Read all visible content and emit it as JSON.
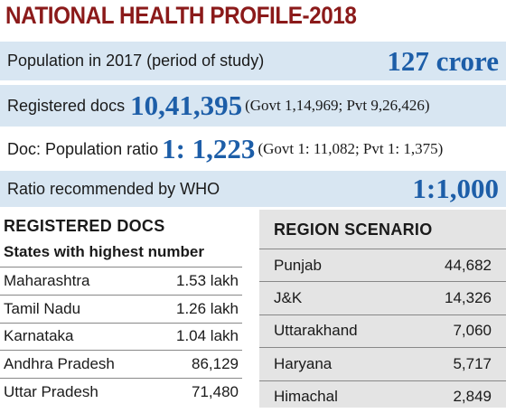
{
  "header": {
    "title": "NATIONAL HEALTH PROFILE-2018"
  },
  "stats": [
    {
      "label": "Population in 2017 (period of study)",
      "value": "127 crore"
    },
    {
      "label": "Registered docs",
      "value": "10,41,395",
      "detail": "(Govt 1,14,969; Pvt 9,26,426)"
    },
    {
      "label": "Doc: Population ratio",
      "value": "1: 1,223",
      "detail": "(Govt 1: 11,082; Pvt 1: 1,375)"
    },
    {
      "label": "Ratio recommended by WHO",
      "value": "1:1,000"
    }
  ],
  "registered_docs": {
    "title": "REGISTERED DOCS",
    "subtitle": "States with highest number",
    "rows": [
      [
        "Maharashtra",
        "1.53 lakh"
      ],
      [
        "Tamil Nadu",
        "1.26 lakh"
      ],
      [
        "Karnataka",
        "1.04 lakh"
      ],
      [
        "Andhra Pradesh",
        "86,129"
      ],
      [
        "Uttar Pradesh",
        "71,480"
      ]
    ]
  },
  "region_scenario": {
    "title": "REGION SCENARIO",
    "rows": [
      [
        "Punjab",
        "44,682"
      ],
      [
        "J&K",
        "14,326"
      ],
      [
        "Uttarakhand",
        "7,060"
      ],
      [
        "Haryana",
        "5,717"
      ],
      [
        "Himachal",
        "2,849"
      ]
    ]
  }
}
